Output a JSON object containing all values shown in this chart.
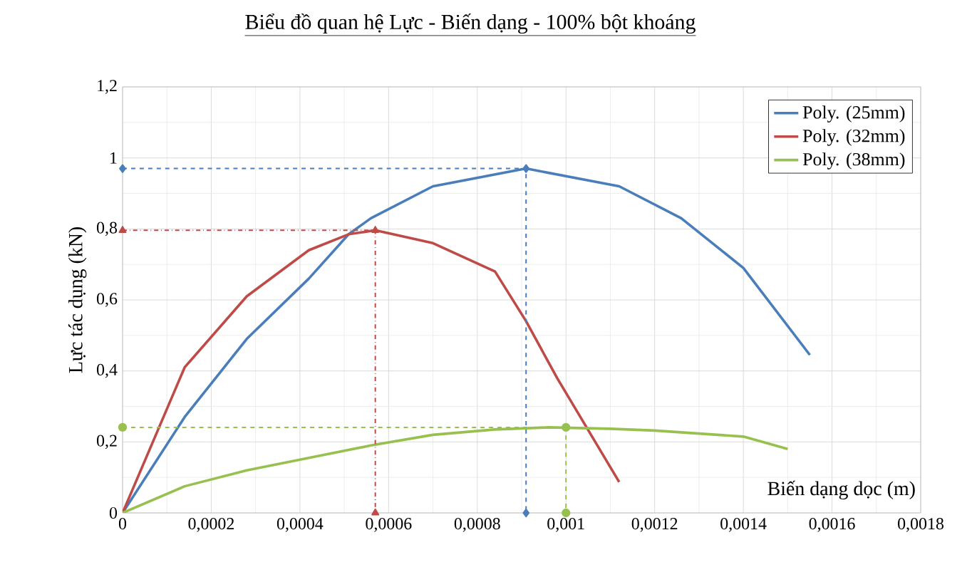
{
  "chart_data": {
    "type": "line",
    "title": "Biểu đồ quan hệ Lực - Biến dạng - 100% bột khoáng",
    "xlabel": "Biến dạng dọc (m)",
    "ylabel": "Lực tác dụng (kN)",
    "xlim": [
      0,
      0.0018
    ],
    "ylim": [
      0,
      1.2
    ],
    "xticks": [
      0,
      {
        "value": 0.0002,
        "label": "0,0002"
      },
      {
        "value": 0.0004,
        "label": "0,0004"
      },
      {
        "value": 0.0006,
        "label": "0,0006"
      },
      {
        "value": 0.0008,
        "label": "0,0008"
      },
      {
        "value": 0.001,
        "label": "0,001"
      },
      {
        "value": 0.0012,
        "label": "0,0012"
      },
      {
        "value": 0.0014,
        "label": "0,0014"
      },
      {
        "value": 0.0016,
        "label": "0,0016"
      },
      {
        "value": 0.0018,
        "label": "0,0018"
      }
    ],
    "yticks": [
      0,
      {
        "value": 0.2,
        "label": "0,2"
      },
      {
        "value": 0.4,
        "label": "0,4"
      },
      {
        "value": 0.6,
        "label": "0,6"
      },
      {
        "value": 0.8,
        "label": "0,8"
      },
      1,
      {
        "value": 1.2,
        "label": "1,2"
      }
    ],
    "grid": true,
    "legend": "top right",
    "marker": "none",
    "line_style": "solid",
    "series": [
      {
        "name": "Poly. (25mm)",
        "color": "#4a7ebb",
        "x": [
          0,
          0.00014,
          0.00028,
          0.00042,
          0.00051,
          0.00056,
          0.0007,
          0.00091,
          0.00112,
          0.00126,
          0.0014,
          0.00155
        ],
        "values": [
          0,
          0.27,
          0.49,
          0.66,
          0.785,
          0.83,
          0.92,
          0.97,
          0.92,
          0.83,
          0.69,
          0.445
        ]
      },
      {
        "name": "Poly. (32mm)",
        "color": "#be4b48",
        "x": [
          0,
          0.00014,
          0.00028,
          0.00042,
          0.00051,
          0.00057,
          0.0007,
          0.00084,
          0.00091,
          0.00098,
          0.00112
        ],
        "values": [
          0,
          0.41,
          0.61,
          0.74,
          0.785,
          0.796,
          0.76,
          0.68,
          0.54,
          0.38,
          0.087
        ]
      },
      {
        "name": "Poly. (38mm)",
        "color": "#98c04f",
        "x": [
          0,
          0.00014,
          0.00028,
          0.00042,
          0.00056,
          0.0007,
          0.00084,
          0.00096,
          0.0011,
          0.0012,
          0.0014,
          0.0015
        ],
        "values": [
          0,
          0.075,
          0.12,
          0.155,
          0.19,
          0.22,
          0.235,
          0.241,
          0.237,
          0.232,
          0.215,
          0.18
        ]
      },
      {
        "color": "#4a7ebb",
        "line_style": "dashed",
        "marker": "diamond",
        "x": [
          0,
          0.00091,
          0.00091
        ],
        "values": [
          0.97,
          0.97,
          0
        ]
      },
      {
        "color": "#be4b48",
        "line_style": "dashdot",
        "marker": "triangle",
        "x": [
          0,
          0.00057,
          0.00057
        ],
        "values": [
          0.796,
          0.796,
          0
        ]
      },
      {
        "color": "#98c04f",
        "line_style": "dashed",
        "marker": "circle",
        "x": [
          0,
          0.001,
          0.001
        ],
        "values": [
          0.241,
          0.241,
          0
        ]
      }
    ]
  }
}
